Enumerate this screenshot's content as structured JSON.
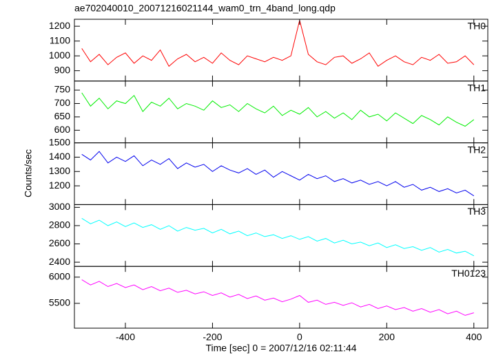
{
  "chart_data": {
    "type": "line",
    "title": "ae702040010_20071216021144_wam0_trn_4band_long.qdp",
    "xlabel": "Time [sec] 0 = 2007/12/16 02:11:44",
    "ylabel": "Counts/sec",
    "xlim": [
      -517,
      432
    ],
    "xticks": [
      -400,
      -200,
      0,
      200,
      400
    ],
    "x": [
      -500,
      -480,
      -460,
      -440,
      -420,
      -400,
      -380,
      -360,
      -340,
      -320,
      -300,
      -280,
      -260,
      -240,
      -220,
      -200,
      -180,
      -160,
      -140,
      -120,
      -100,
      -80,
      -60,
      -40,
      -20,
      0,
      20,
      40,
      60,
      80,
      100,
      120,
      140,
      160,
      180,
      200,
      220,
      240,
      260,
      280,
      300,
      320,
      340,
      360,
      380,
      400
    ],
    "series": [
      {
        "name": "TH0",
        "color": "#ff0000",
        "ylim": [
          830,
          1247
        ],
        "yticks": [
          900,
          1000,
          1100,
          1200
        ],
        "values": [
          1050,
          960,
          1010,
          940,
          990,
          1020,
          950,
          1000,
          970,
          1040,
          930,
          980,
          1010,
          960,
          990,
          950,
          1020,
          970,
          940,
          1000,
          980,
          960,
          990,
          970,
          1000,
          1240,
          1010,
          960,
          940,
          990,
          1000,
          950,
          980,
          1020,
          930,
          970,
          1000,
          960,
          940,
          990,
          970,
          1010,
          950,
          960,
          1000,
          940
        ]
      },
      {
        "name": "TH1",
        "color": "#00ee00",
        "ylim": [
          553,
          784
        ],
        "yticks": [
          600,
          650,
          700,
          750
        ],
        "values": [
          740,
          690,
          720,
          680,
          710,
          700,
          730,
          670,
          705,
          690,
          720,
          680,
          700,
          690,
          675,
          710,
          685,
          695,
          670,
          700,
          680,
          665,
          690,
          655,
          675,
          660,
          685,
          650,
          670,
          645,
          665,
          640,
          675,
          650,
          660,
          635,
          665,
          645,
          625,
          655,
          640,
          620,
          650,
          630,
          615,
          640
        ]
      },
      {
        "name": "TH2",
        "color": "#0000ee",
        "ylim": [
          1069,
          1500
        ],
        "yticks": [
          1200,
          1300,
          1400,
          1500
        ],
        "values": [
          1420,
          1380,
          1440,
          1360,
          1400,
          1370,
          1410,
          1340,
          1380,
          1350,
          1390,
          1320,
          1360,
          1330,
          1350,
          1300,
          1340,
          1310,
          1290,
          1320,
          1280,
          1310,
          1260,
          1300,
          1270,
          1240,
          1280,
          1250,
          1270,
          1230,
          1250,
          1220,
          1240,
          1210,
          1230,
          1200,
          1230,
          1190,
          1210,
          1170,
          1190,
          1160,
          1180,
          1150,
          1170,
          1130
        ]
      },
      {
        "name": "TH3",
        "color": "#00ffff",
        "ylim": [
          2354,
          3030
        ],
        "yticks": [
          2400,
          2600,
          2800,
          3000
        ],
        "values": [
          2880,
          2820,
          2860,
          2800,
          2840,
          2790,
          2830,
          2780,
          2810,
          2760,
          2800,
          2740,
          2780,
          2750,
          2770,
          2720,
          2760,
          2710,
          2740,
          2690,
          2720,
          2680,
          2700,
          2660,
          2690,
          2650,
          2680,
          2630,
          2660,
          2610,
          2640,
          2600,
          2620,
          2580,
          2610,
          2560,
          2590,
          2550,
          2570,
          2530,
          2560,
          2510,
          2540,
          2500,
          2520,
          2470
        ]
      },
      {
        "name": "TH0123",
        "color": "#ff00ff",
        "ylim": [
          5026,
          6205
        ],
        "yticks": [
          5500,
          6000
        ],
        "values": [
          5950,
          5850,
          5920,
          5820,
          5880,
          5800,
          5850,
          5760,
          5820,
          5740,
          5790,
          5710,
          5750,
          5680,
          5720,
          5650,
          5700,
          5620,
          5670,
          5590,
          5640,
          5560,
          5600,
          5530,
          5580,
          5650,
          5520,
          5560,
          5480,
          5520,
          5460,
          5510,
          5430,
          5480,
          5400,
          5450,
          5380,
          5420,
          5350,
          5400,
          5330,
          5380,
          5300,
          5350,
          5270,
          5320
        ]
      }
    ]
  }
}
